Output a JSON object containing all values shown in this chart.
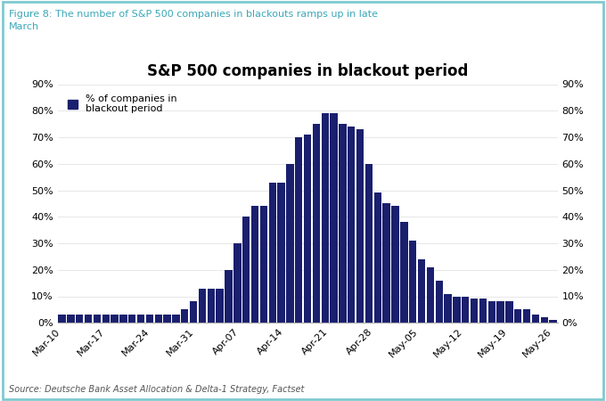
{
  "title": "S&P 500 companies in blackout period",
  "figure_label_line1": "Figure 8: The number of S&P 500 companies in blackouts ramps up in late",
  "figure_label_line2": "March",
  "source_text": "Source: Deutsche Bank Asset Allocation & Delta-1 Strategy, Factset",
  "legend_label": "% of companies in\nblackout period",
  "bar_color": "#1a1f6e",
  "fig_bg_color": "#ffffff",
  "plot_bg_color": "#ffffff",
  "border_color": "#7ecad0",
  "figure_label_color": "#3ba8b8",
  "x_labels": [
    "Mar-10",
    "Mar-17",
    "Mar-24",
    "Mar-31",
    "Apr-07",
    "Apr-14",
    "Apr-21",
    "Apr-28",
    "May-05",
    "May-12",
    "May-19",
    "May-26"
  ],
  "values": [
    3,
    3,
    3,
    3,
    3,
    3,
    3,
    3,
    3,
    3,
    3,
    3,
    3,
    3,
    5,
    8,
    13,
    13,
    13,
    20,
    30,
    40,
    44,
    44,
    53,
    53,
    60,
    70,
    71,
    75,
    79,
    79,
    75,
    74,
    73,
    60,
    49,
    45,
    44,
    38,
    31,
    24,
    21,
    16,
    11,
    10,
    10,
    9,
    9,
    8,
    8,
    8,
    5,
    5,
    3,
    2,
    1
  ],
  "ylim": [
    0,
    90
  ],
  "ytick_vals": [
    0,
    10,
    20,
    30,
    40,
    50,
    60,
    70,
    80,
    90
  ],
  "title_fontsize": 12,
  "label_fontsize": 8,
  "tick_fontsize": 8,
  "source_fontsize": 7
}
